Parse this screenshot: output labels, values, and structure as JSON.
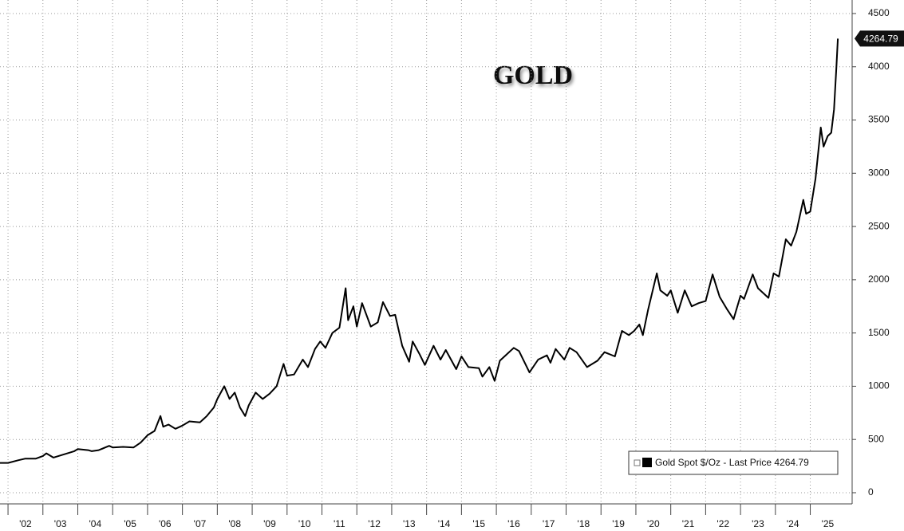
{
  "chart_data": {
    "type": "line",
    "title": "GOLD",
    "x": [
      2001.77,
      2002.0,
      2002.3,
      2002.5,
      2002.8,
      2003.0,
      2003.1,
      2003.3,
      2003.6,
      2003.9,
      2004.0,
      2004.3,
      2004.4,
      2004.6,
      2004.9,
      2005.0,
      2005.3,
      2005.6,
      2005.8,
      2006.0,
      2006.2,
      2006.37,
      2006.45,
      2006.6,
      2006.8,
      2007.0,
      2007.2,
      2007.5,
      2007.7,
      2007.9,
      2008.0,
      2008.2,
      2008.35,
      2008.5,
      2008.65,
      2008.8,
      2008.9,
      2009.1,
      2009.3,
      2009.5,
      2009.7,
      2009.9,
      2010.0,
      2010.2,
      2010.45,
      2010.6,
      2010.8,
      2010.95,
      2011.1,
      2011.3,
      2011.5,
      2011.68,
      2011.75,
      2011.9,
      2012.0,
      2012.15,
      2012.4,
      2012.6,
      2012.75,
      2012.95,
      2013.1,
      2013.3,
      2013.5,
      2013.6,
      2013.8,
      2013.95,
      2014.2,
      2014.4,
      2014.55,
      2014.85,
      2015.0,
      2015.2,
      2015.5,
      2015.6,
      2015.8,
      2015.95,
      2016.1,
      2016.5,
      2016.65,
      2016.95,
      2017.2,
      2017.45,
      2017.55,
      2017.7,
      2017.95,
      2018.1,
      2018.3,
      2018.6,
      2018.9,
      2019.1,
      2019.4,
      2019.6,
      2019.8,
      2019.95,
      2020.1,
      2020.2,
      2020.35,
      2020.6,
      2020.7,
      2020.9,
      2021.0,
      2021.2,
      2021.4,
      2021.6,
      2021.8,
      2022.0,
      2022.2,
      2022.4,
      2022.6,
      2022.8,
      2023.0,
      2023.1,
      2023.35,
      2023.5,
      2023.8,
      2023.95,
      2024.1,
      2024.3,
      2024.45,
      2024.6,
      2024.8,
      2024.88,
      2025.0,
      2025.15,
      2025.3,
      2025.38,
      2025.5,
      2025.6,
      2025.68,
      2025.75,
      2025.79
    ],
    "series": [
      {
        "name": "Gold Spot $/Oz - Last Price 4264.79",
        "color": "#000000",
        "values": [
          280,
          280,
          305,
          320,
          320,
          345,
          370,
          330,
          360,
          390,
          410,
          400,
          390,
          400,
          440,
          425,
          430,
          425,
          470,
          540,
          580,
          720,
          620,
          640,
          600,
          630,
          670,
          660,
          720,
          800,
          880,
          1000,
          880,
          940,
          800,
          720,
          820,
          940,
          880,
          930,
          1000,
          1210,
          1100,
          1110,
          1250,
          1180,
          1350,
          1420,
          1360,
          1500,
          1550,
          1920,
          1620,
          1750,
          1560,
          1780,
          1560,
          1600,
          1790,
          1660,
          1670,
          1380,
          1230,
          1420,
          1300,
          1200,
          1380,
          1250,
          1340,
          1160,
          1280,
          1180,
          1170,
          1090,
          1180,
          1050,
          1240,
          1360,
          1330,
          1130,
          1250,
          1290,
          1220,
          1350,
          1250,
          1360,
          1320,
          1180,
          1240,
          1320,
          1280,
          1520,
          1480,
          1520,
          1580,
          1480,
          1720,
          2060,
          1900,
          1850,
          1900,
          1690,
          1900,
          1750,
          1780,
          1800,
          2050,
          1840,
          1730,
          1630,
          1850,
          1820,
          2050,
          1920,
          1830,
          2060,
          2030,
          2380,
          2320,
          2450,
          2750,
          2620,
          2640,
          2950,
          3430,
          3250,
          3350,
          3380,
          3600,
          4000,
          4264.79
        ]
      }
    ],
    "last_price": 4264.79,
    "xlim": [
      2001.77,
      2026.2
    ],
    "xticks": [
      {
        "value": 2002,
        "label": "'02"
      },
      {
        "value": 2003,
        "label": "'03"
      },
      {
        "value": 2004,
        "label": "'04"
      },
      {
        "value": 2005,
        "label": "'05"
      },
      {
        "value": 2006,
        "label": "'06"
      },
      {
        "value": 2007,
        "label": "'07"
      },
      {
        "value": 2008,
        "label": "'08"
      },
      {
        "value": 2009,
        "label": "'09"
      },
      {
        "value": 2010,
        "label": "'10"
      },
      {
        "value": 2011,
        "label": "'11"
      },
      {
        "value": 2012,
        "label": "'12"
      },
      {
        "value": 2013,
        "label": "'13"
      },
      {
        "value": 2014,
        "label": "'14"
      },
      {
        "value": 2015,
        "label": "'15"
      },
      {
        "value": 2016,
        "label": "'16"
      },
      {
        "value": 2017,
        "label": "'17"
      },
      {
        "value": 2018,
        "label": "'18"
      },
      {
        "value": 2019,
        "label": "'19"
      },
      {
        "value": 2020,
        "label": "'20"
      },
      {
        "value": 2021,
        "label": "'21"
      },
      {
        "value": 2022,
        "label": "'22"
      },
      {
        "value": 2023,
        "label": "'23"
      },
      {
        "value": 2024,
        "label": "'24"
      },
      {
        "value": 2025,
        "label": "'25"
      }
    ],
    "ylim": [
      -105,
      4627
    ],
    "yticks": [
      0,
      500,
      1000,
      1500,
      2000,
      2500,
      3000,
      3500,
      4000,
      4500
    ],
    "grid": true,
    "legend": "lower right"
  }
}
